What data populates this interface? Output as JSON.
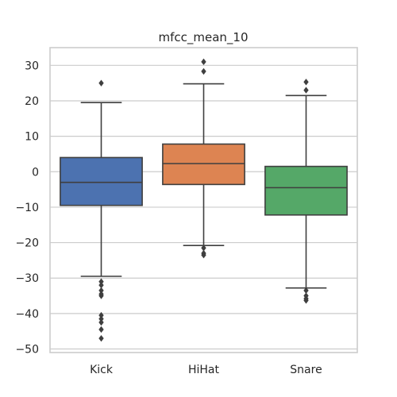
{
  "chart_data": {
    "type": "box",
    "title": "mfcc_mean_10",
    "xlabel": "",
    "ylabel": "",
    "categories": [
      "Kick",
      "HiHat",
      "Snare"
    ],
    "ylim": [
      -51,
      35
    ],
    "y_ticks": [
      30,
      20,
      10,
      0,
      -10,
      -20,
      -30,
      -40,
      -50
    ],
    "y_tick_labels": [
      "30",
      "20",
      "10",
      "0",
      "−10",
      "−20",
      "−30",
      "−40",
      "−50"
    ],
    "grid": true,
    "boxes": [
      {
        "category": "Kick",
        "color": "#4c72b0",
        "whisker_low": -29.5,
        "q1": -9.5,
        "median": -3.0,
        "q3": 4.0,
        "whisker_high": 19.5,
        "outliers": [
          25.0,
          -31.0,
          -32.0,
          -33.5,
          -34.5,
          -35.0,
          -40.5,
          -41.5,
          -42.5,
          -44.5,
          -47.0
        ]
      },
      {
        "category": "HiHat",
        "color": "#dd8452",
        "whisker_low": -20.8,
        "q1": -3.6,
        "median": 2.3,
        "q3": 7.8,
        "whisker_high": 24.8,
        "outliers": [
          31.0,
          28.3,
          -21.5,
          -23.0,
          -23.5
        ]
      },
      {
        "category": "Snare",
        "color": "#55a868",
        "whisker_low": -32.8,
        "q1": -12.2,
        "median": -4.5,
        "q3": 1.5,
        "whisker_high": 21.5,
        "outliers": [
          25.3,
          23.0,
          -33.5,
          -35.0,
          -35.8,
          -36.3
        ]
      }
    ]
  }
}
